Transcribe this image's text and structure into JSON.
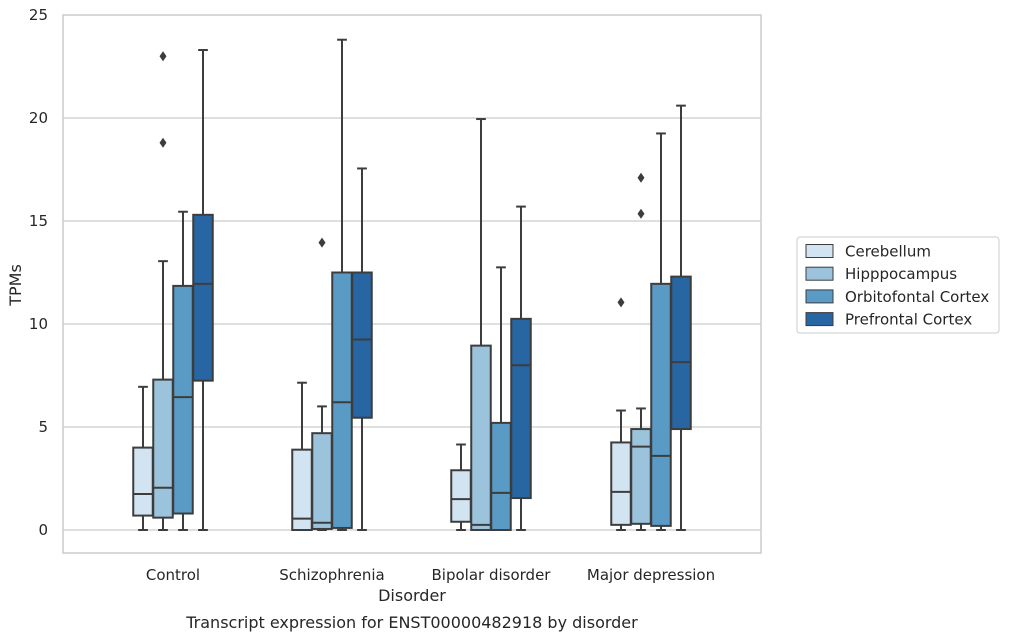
{
  "chart_data": {
    "type": "box",
    "title": "Transcript expression for ENST00000482918 by disorder",
    "xlabel": "Disorder",
    "ylabel": "TPMs",
    "ylim": [
      -1.1,
      25
    ],
    "yticks": [
      0,
      5,
      10,
      15,
      20,
      25
    ],
    "grid": "horizontal",
    "legend_position": "right",
    "categories": [
      "Control",
      "Schizophrenia",
      "Bipolar disorder",
      "Major depression"
    ],
    "series": [
      {
        "name": "Cerebellum",
        "color": "#d2e3f2",
        "boxes": [
          {
            "whislo": 0,
            "q1": 0.7,
            "med": 1.75,
            "q3": 4.0,
            "whishi": 6.95,
            "fliers": []
          },
          {
            "whislo": 0,
            "q1": 0.0,
            "med": 0.55,
            "q3": 3.9,
            "whishi": 7.15,
            "fliers": []
          },
          {
            "whislo": 0,
            "q1": 0.4,
            "med": 1.5,
            "q3": 2.9,
            "whishi": 4.15,
            "fliers": []
          },
          {
            "whislo": 0,
            "q1": 0.25,
            "med": 1.85,
            "q3": 4.25,
            "whishi": 5.8,
            "fliers": [
              11.05
            ]
          }
        ]
      },
      {
        "name": "Hipppocampus",
        "color": "#9bc3db",
        "boxes": [
          {
            "whislo": 0,
            "q1": 0.6,
            "med": 2.05,
            "q3": 7.3,
            "whishi": 13.05,
            "fliers": [
              18.8,
              23.0
            ]
          },
          {
            "whislo": 0,
            "q1": 0.05,
            "med": 0.35,
            "q3": 4.7,
            "whishi": 6.0,
            "fliers": [
              13.95
            ]
          },
          {
            "whislo": 0,
            "q1": 0.0,
            "med": 0.25,
            "q3": 8.95,
            "whishi": 19.95,
            "fliers": []
          },
          {
            "whislo": 0,
            "q1": 0.3,
            "med": 4.05,
            "q3": 4.9,
            "whishi": 5.9,
            "fliers": [
              15.35,
              17.1
            ]
          }
        ]
      },
      {
        "name": "Orbitofontal Cortex",
        "color": "#5a9bc6",
        "boxes": [
          {
            "whislo": 0,
            "q1": 0.8,
            "med": 6.45,
            "q3": 11.85,
            "whishi": 15.45,
            "fliers": []
          },
          {
            "whislo": 0,
            "q1": 0.1,
            "med": 6.2,
            "q3": 12.5,
            "whishi": 23.8,
            "fliers": []
          },
          {
            "whislo": 0,
            "q1": 0.0,
            "med": 1.8,
            "q3": 5.2,
            "whishi": 12.75,
            "fliers": []
          },
          {
            "whislo": 0,
            "q1": 0.2,
            "med": 3.6,
            "q3": 11.95,
            "whishi": 19.25,
            "fliers": []
          }
        ]
      },
      {
        "name": "Prefrontal Cortex",
        "color": "#2765a3",
        "boxes": [
          {
            "whislo": 0,
            "q1": 7.25,
            "med": 11.95,
            "q3": 15.3,
            "whishi": 23.3,
            "fliers": []
          },
          {
            "whislo": 0,
            "q1": 5.45,
            "med": 9.25,
            "q3": 12.5,
            "whishi": 17.55,
            "fliers": []
          },
          {
            "whislo": 0,
            "q1": 1.55,
            "med": 8.0,
            "q3": 10.25,
            "whishi": 15.7,
            "fliers": []
          },
          {
            "whislo": 0,
            "q1": 4.9,
            "med": 8.15,
            "q3": 12.3,
            "whishi": 20.6,
            "fliers": []
          }
        ]
      }
    ]
  }
}
